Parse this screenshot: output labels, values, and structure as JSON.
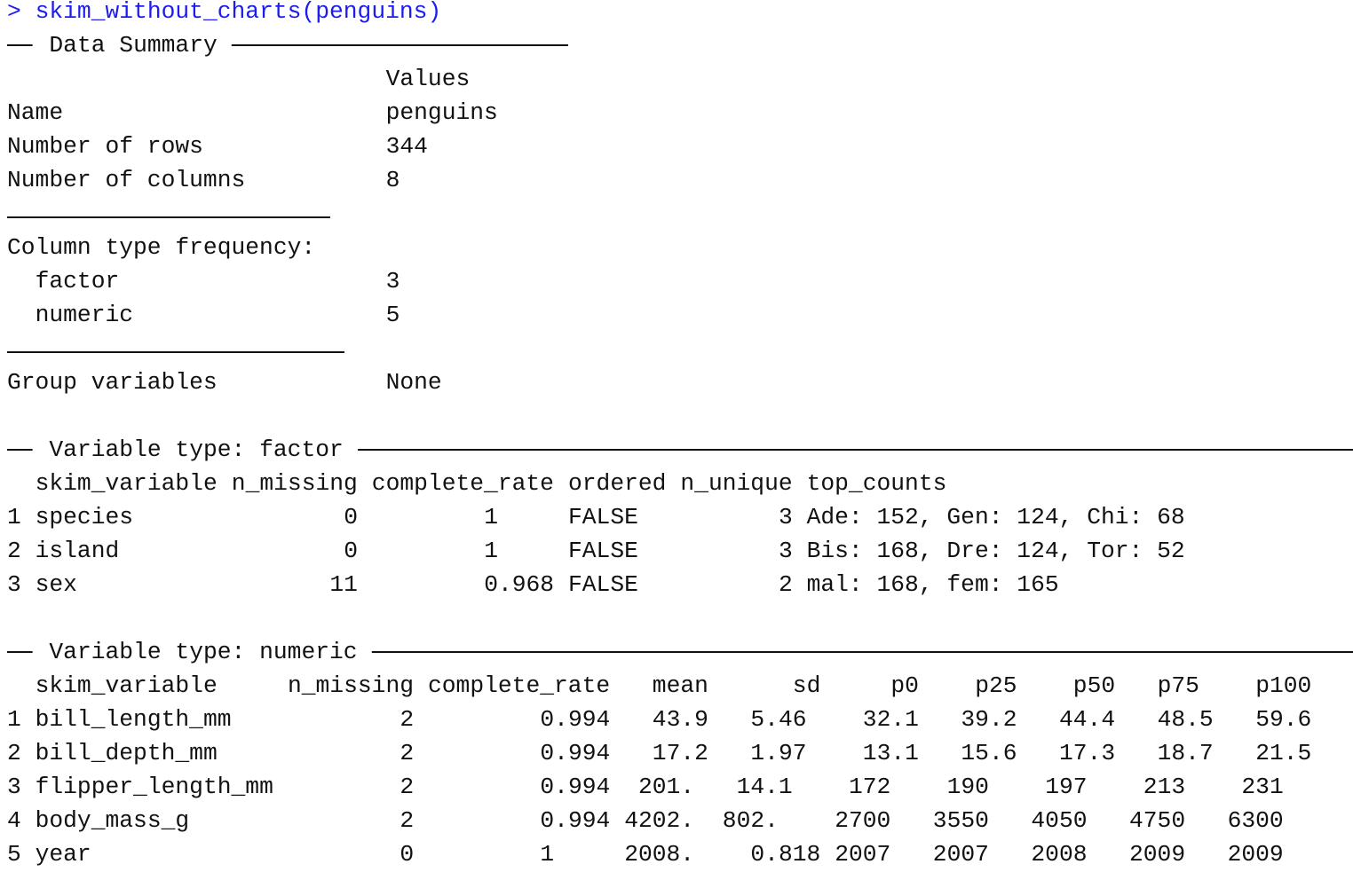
{
  "console": {
    "prompt": ">",
    "command": "skim_without_charts(penguins)",
    "data_summary": {
      "title": "Data Summary",
      "values_header": "Values",
      "rows": [
        [
          "Name",
          "penguins"
        ],
        [
          "Number of rows",
          "344"
        ],
        [
          "Number of columns",
          "8"
        ]
      ],
      "column_type_frequency": {
        "title": "Column type frequency:",
        "rows": [
          [
            "factor",
            "3"
          ],
          [
            "numeric",
            "5"
          ]
        ]
      },
      "group_variables": [
        "Group variables",
        "None"
      ]
    },
    "factor_section": {
      "title": "Variable type: factor",
      "columns": [
        "skim_variable",
        "n_missing",
        "complete_rate",
        "ordered",
        "n_unique",
        "top_counts"
      ],
      "rows": [
        [
          "1",
          "species",
          "0",
          "1",
          "FALSE",
          "3",
          "Ade: 152, Gen: 124, Chi: 68"
        ],
        [
          "2",
          "island",
          "0",
          "1",
          "FALSE",
          "3",
          "Bis: 168, Dre: 124, Tor: 52"
        ],
        [
          "3",
          "sex",
          "11",
          "0.968",
          "FALSE",
          "2",
          "mal: 168, fem: 165"
        ]
      ]
    },
    "numeric_section": {
      "title": "Variable type: numeric",
      "columns": [
        "skim_variable",
        "n_missing",
        "complete_rate",
        "mean",
        "sd",
        "p0",
        "p25",
        "p50",
        "p75",
        "p100"
      ],
      "rows": [
        [
          "1",
          "bill_length_mm",
          "2",
          "0.994",
          "43.9",
          "5.46",
          "32.1",
          "39.2",
          "44.4",
          "48.5",
          "59.6"
        ],
        [
          "2",
          "bill_depth_mm",
          "2",
          "0.994",
          "17.2",
          "1.97",
          "13.1",
          "15.6",
          "17.3",
          "18.7",
          "21.5"
        ],
        [
          "3",
          "flipper_length_mm",
          "2",
          "0.994",
          "201.",
          "14.1",
          "172",
          "190",
          "197",
          "213",
          "231"
        ],
        [
          "4",
          "body_mass_g",
          "2",
          "0.994",
          "4202.",
          "802.",
          "2700",
          "3550",
          "4050",
          "4750",
          "6300"
        ],
        [
          "5",
          "year",
          "0",
          "1",
          "2008.",
          "0.818",
          "2007",
          "2007",
          "2008",
          "2009",
          "2009"
        ]
      ]
    }
  }
}
